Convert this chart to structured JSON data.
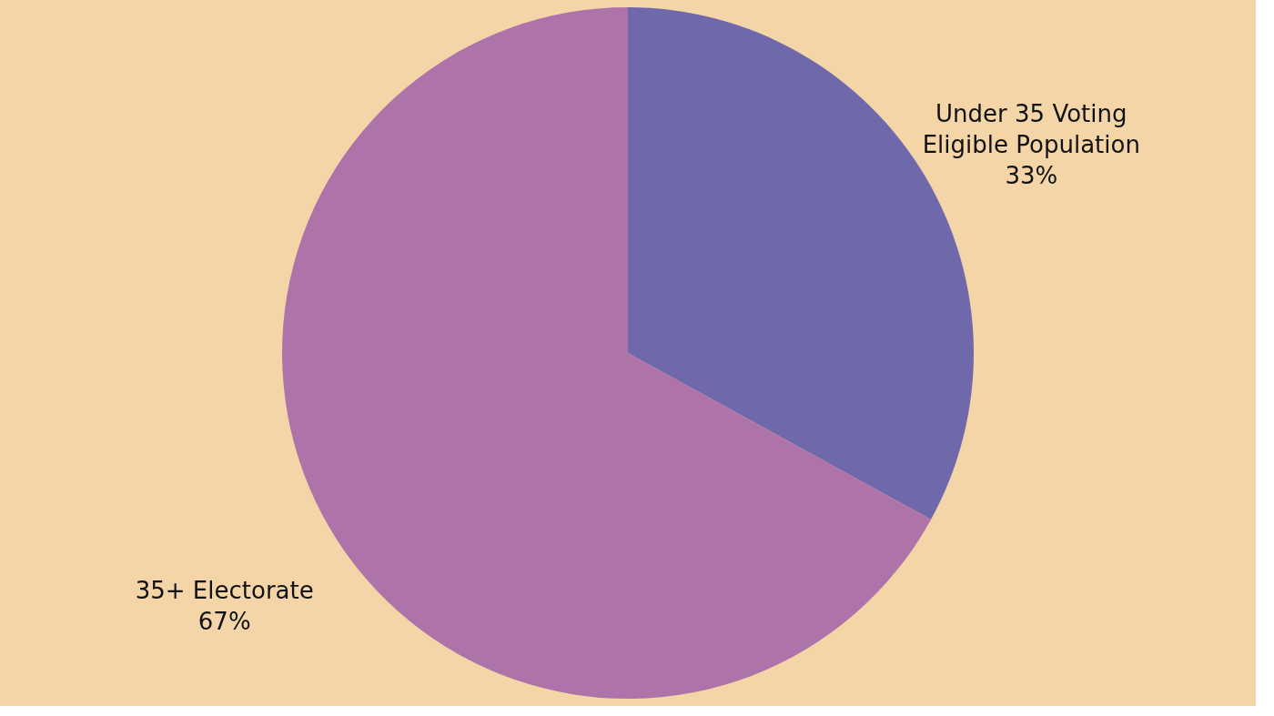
{
  "chart_data": {
    "type": "pie",
    "categories": [
      "Under 35 Voting Eligible Population",
      "35+ Electorate"
    ],
    "values": [
      33,
      67
    ],
    "colors": [
      "#6f68ab",
      "#ae73a8"
    ],
    "value_labels": [
      "33%",
      "67%"
    ]
  }
}
